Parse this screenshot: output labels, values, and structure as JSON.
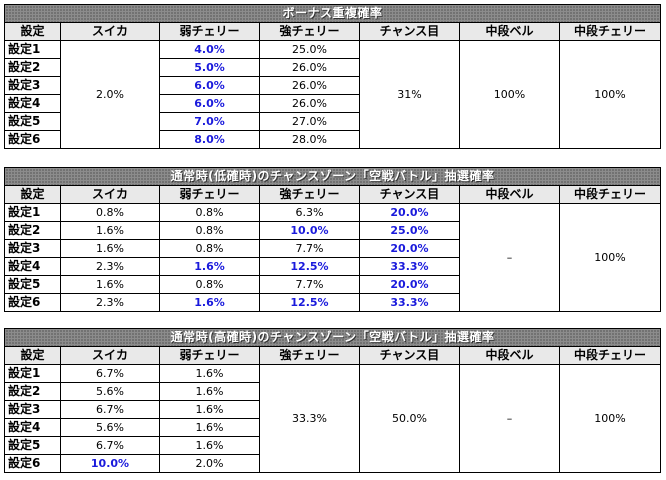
{
  "tables": [
    {
      "title": "ボーナス重複確率",
      "headers": [
        "設定",
        "スイカ",
        "弱チェリー",
        "強チェリー",
        "チャンス目",
        "中段ベル",
        "中段チェリー"
      ],
      "rows": [
        {
          "setting": "設定1",
          "suika": "2.0%",
          "weak": "4.0%",
          "strong": "25.0%",
          "chance": "31%",
          "bell": "100%",
          "cherry": "100%"
        },
        {
          "setting": "設定2",
          "weak": "5.0%",
          "strong": "26.0%"
        },
        {
          "setting": "設定3",
          "weak": "6.0%",
          "strong": "26.0%"
        },
        {
          "setting": "設定4",
          "weak": "6.0%",
          "strong": "26.0%"
        },
        {
          "setting": "設定5",
          "weak": "7.0%",
          "strong": "27.0%"
        },
        {
          "setting": "設定6",
          "weak": "8.0%",
          "strong": "28.0%"
        }
      ]
    },
    {
      "title": "通常時(低確時)のチャンスゾーン「空戦バトル」抽選確率",
      "headers": [
        "設定",
        "スイカ",
        "弱チェリー",
        "強チェリー",
        "チャンス目",
        "中段ベル",
        "中段チェリー"
      ],
      "bell": "–",
      "cherry": "100%",
      "rows": [
        {
          "setting": "設定1",
          "suika": "0.8%",
          "weak": "0.8%",
          "strong": "6.3%",
          "chance": "20.0%"
        },
        {
          "setting": "設定2",
          "suika": "1.6%",
          "weak": "0.8%",
          "strong": "10.0%",
          "chance": "25.0%"
        },
        {
          "setting": "設定3",
          "suika": "1.6%",
          "weak": "0.8%",
          "strong": "7.7%",
          "chance": "20.0%"
        },
        {
          "setting": "設定4",
          "suika": "2.3%",
          "weak": "1.6%",
          "strong": "12.5%",
          "chance": "33.3%"
        },
        {
          "setting": "設定5",
          "suika": "1.6%",
          "weak": "0.8%",
          "strong": "7.7%",
          "chance": "20.0%"
        },
        {
          "setting": "設定6",
          "suika": "2.3%",
          "weak": "1.6%",
          "strong": "12.5%",
          "chance": "33.3%"
        }
      ]
    },
    {
      "title": "通常時(高確時)のチャンスゾーン「空戦バトル」抽選確率",
      "headers": [
        "設定",
        "スイカ",
        "弱チェリー",
        "強チェリー",
        "チャンス目",
        "中段ベル",
        "中段チェリー"
      ],
      "strong": "33.3%",
      "chance": "50.0%",
      "bell": "–",
      "cherry": "100%",
      "rows": [
        {
          "setting": "設定1",
          "suika": "6.7%",
          "weak": "1.6%"
        },
        {
          "setting": "設定2",
          "suika": "5.6%",
          "weak": "1.6%"
        },
        {
          "setting": "設定3",
          "suika": "6.7%",
          "weak": "1.6%"
        },
        {
          "setting": "設定4",
          "suika": "5.6%",
          "weak": "1.6%"
        },
        {
          "setting": "設定5",
          "suika": "6.7%",
          "weak": "1.6%"
        },
        {
          "setting": "設定6",
          "suika": "10.0%",
          "weak": "2.0%"
        }
      ]
    }
  ]
}
